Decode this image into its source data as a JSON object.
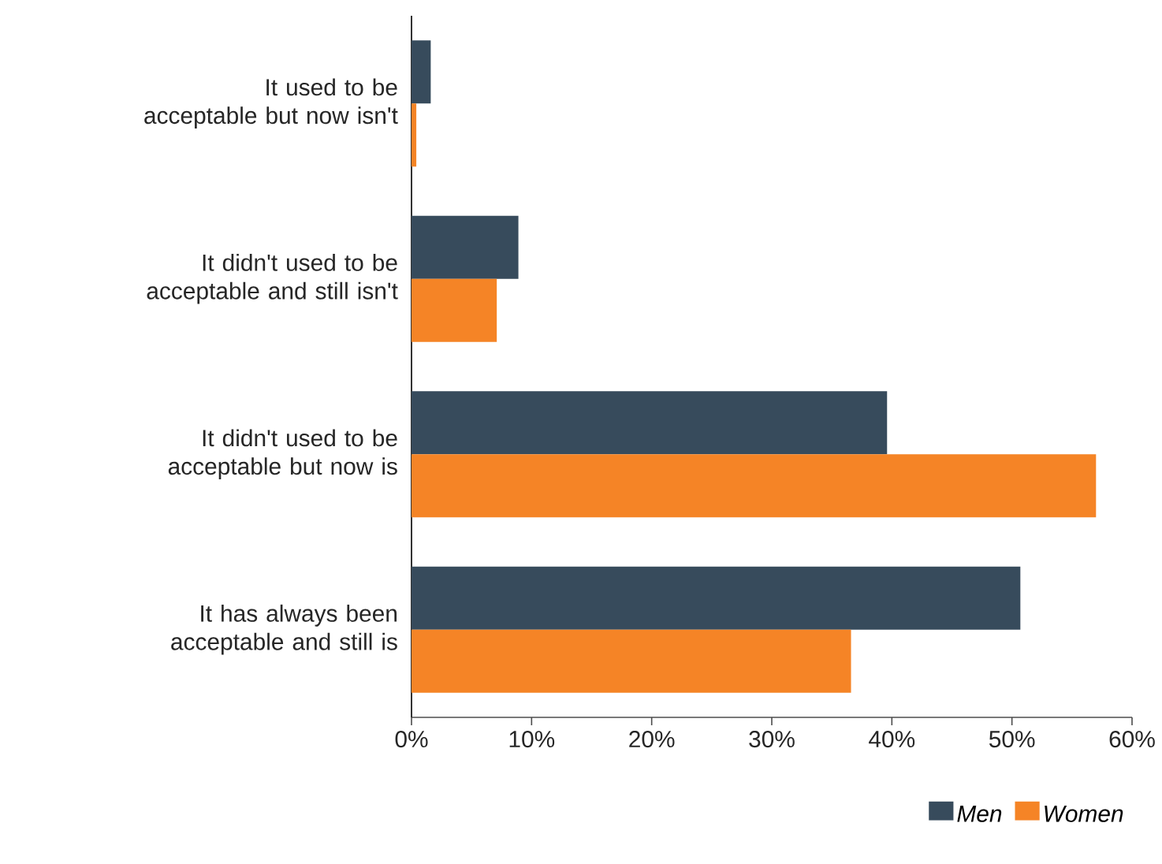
{
  "chart_data": {
    "type": "bar",
    "orientation": "horizontal",
    "categories": [
      "It used to be acceptable but now isn't",
      "It didn't used to be acceptable and still isn't",
      "It didn't used to be acceptable but now is",
      "It has always been acceptable and still is"
    ],
    "series": [
      {
        "name": "Men",
        "color": "#374b5c",
        "values": [
          1.6,
          8.9,
          39.6,
          50.7
        ]
      },
      {
        "name": "Women",
        "color": "#f58426",
        "values": [
          0.4,
          7.1,
          57.0,
          36.6
        ]
      }
    ],
    "xlim": [
      0,
      60
    ],
    "xticks": [
      {
        "value": 0,
        "label": "0%"
      },
      {
        "value": 10,
        "label": "10%"
      },
      {
        "value": 20,
        "label": "20%"
      },
      {
        "value": 30,
        "label": "30%"
      },
      {
        "value": 40,
        "label": "40%"
      },
      {
        "value": 50,
        "label": "50%"
      },
      {
        "value": 60,
        "label": "60%"
      }
    ],
    "legend": "bottom right"
  }
}
